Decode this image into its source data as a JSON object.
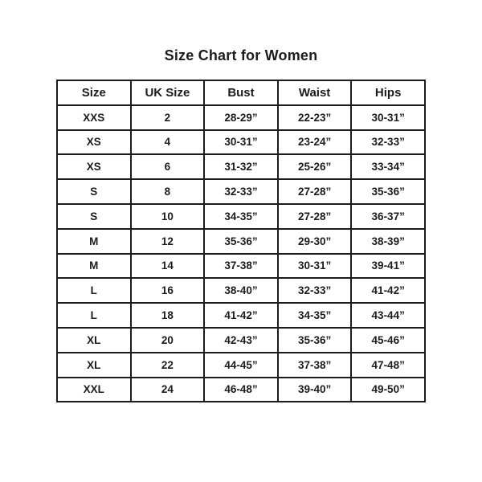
{
  "title": "Size Chart for Women",
  "chart_data": {
    "type": "table",
    "title": "Size Chart for Women",
    "columns": [
      "Size",
      "UK Size",
      "Bust",
      "Waist",
      "Hips"
    ],
    "rows": [
      [
        "XXS",
        "2",
        "28-29”",
        "22-23”",
        "30-31”"
      ],
      [
        "XS",
        "4",
        "30-31”",
        "23-24”",
        "32-33”"
      ],
      [
        "XS",
        "6",
        "31-32”",
        "25-26”",
        "33-34”"
      ],
      [
        "S",
        "8",
        "32-33”",
        "27-28”",
        "35-36”"
      ],
      [
        "S",
        "10",
        "34-35”",
        "27-28”",
        "36-37”"
      ],
      [
        "M",
        "12",
        "35-36”",
        "29-30”",
        "38-39”"
      ],
      [
        "M",
        "14",
        "37-38”",
        "30-31”",
        "39-41”"
      ],
      [
        "L",
        "16",
        "38-40”",
        "32-33”",
        "41-42”"
      ],
      [
        "L",
        "18",
        "41-42”",
        "34-35”",
        "43-44”"
      ],
      [
        "XL",
        "20",
        "42-43”",
        "35-36”",
        "45-46”"
      ],
      [
        "XL",
        "22",
        "44-45”",
        "37-38”",
        "47-48”"
      ],
      [
        "XXL",
        "24",
        "46-48”",
        "39-40”",
        "49-50”"
      ]
    ],
    "layout": {
      "grid": true,
      "header_position": "top",
      "column_count": 5,
      "row_count": 12
    }
  },
  "colors": {
    "text": "#1c1c1c",
    "border": "#1c1c1c",
    "background": "#ffffff"
  }
}
